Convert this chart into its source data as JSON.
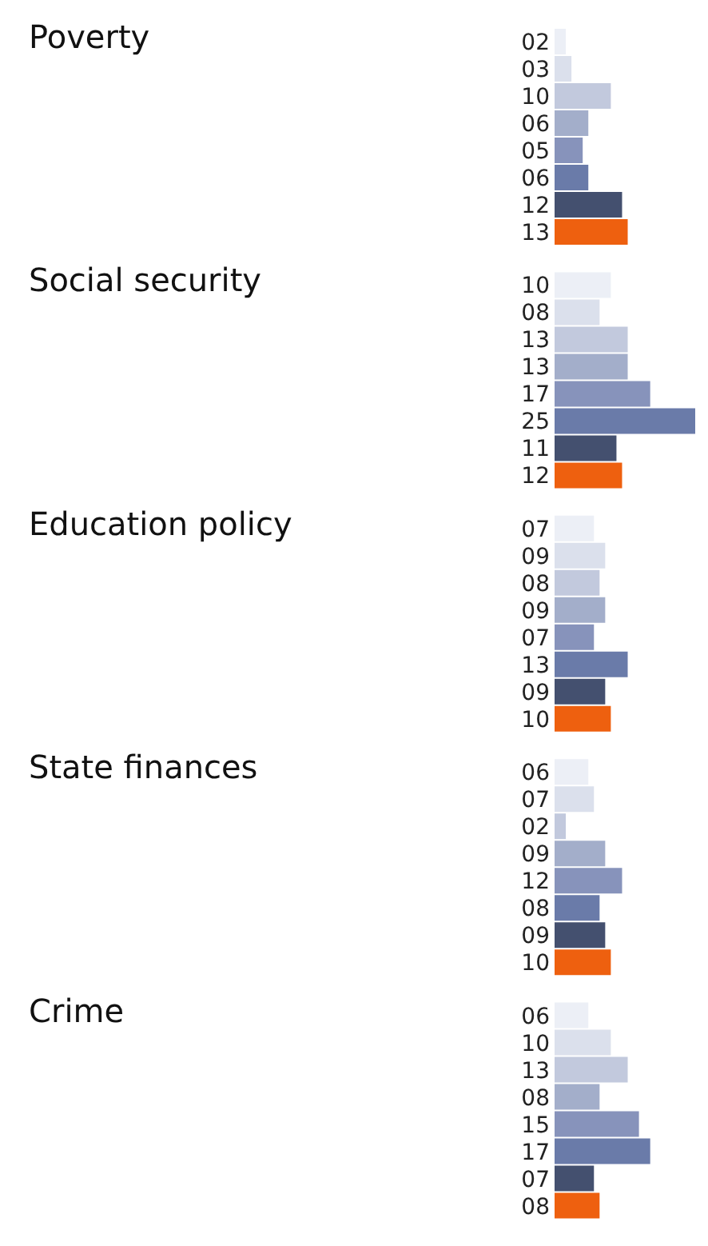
{
  "chart_data": {
    "type": "bar",
    "orientation": "horizontal",
    "categories": [
      "Poverty",
      "Social security",
      "Education policy",
      "State finances",
      "Crime"
    ],
    "series": [
      {
        "color": "#eceff6",
        "values": [
          2,
          10,
          7,
          6,
          6
        ],
        "value_labels": [
          "02",
          "10",
          "07",
          "06",
          "06"
        ]
      },
      {
        "color": "#dbe0ec",
        "values": [
          3,
          8,
          9,
          7,
          10
        ],
        "value_labels": [
          "03",
          "08",
          "09",
          "07",
          "10"
        ]
      },
      {
        "color": "#c2c9dd",
        "values": [
          10,
          13,
          8,
          2,
          13
        ],
        "value_labels": [
          "10",
          "13",
          "08",
          "02",
          "13"
        ]
      },
      {
        "color": "#a3aeca",
        "values": [
          6,
          13,
          9,
          9,
          8
        ],
        "value_labels": [
          "06",
          "13",
          "09",
          "09",
          "08"
        ]
      },
      {
        "color": "#8793bb",
        "values": [
          5,
          17,
          7,
          12,
          15
        ],
        "value_labels": [
          "05",
          "17",
          "07",
          "12",
          "15"
        ]
      },
      {
        "color": "#6a7ba9",
        "values": [
          6,
          25,
          13,
          8,
          17
        ],
        "value_labels": [
          "06",
          "25",
          "13",
          "08",
          "17"
        ]
      },
      {
        "color": "#44506f",
        "values": [
          12,
          11,
          9,
          9,
          7
        ],
        "value_labels": [
          "12",
          "11",
          "09",
          "09",
          "07"
        ]
      },
      {
        "color": "#ee600f",
        "values": [
          13,
          12,
          10,
          10,
          8
        ],
        "value_labels": [
          "13",
          "12",
          "10",
          "10",
          "08"
        ]
      }
    ]
  }
}
